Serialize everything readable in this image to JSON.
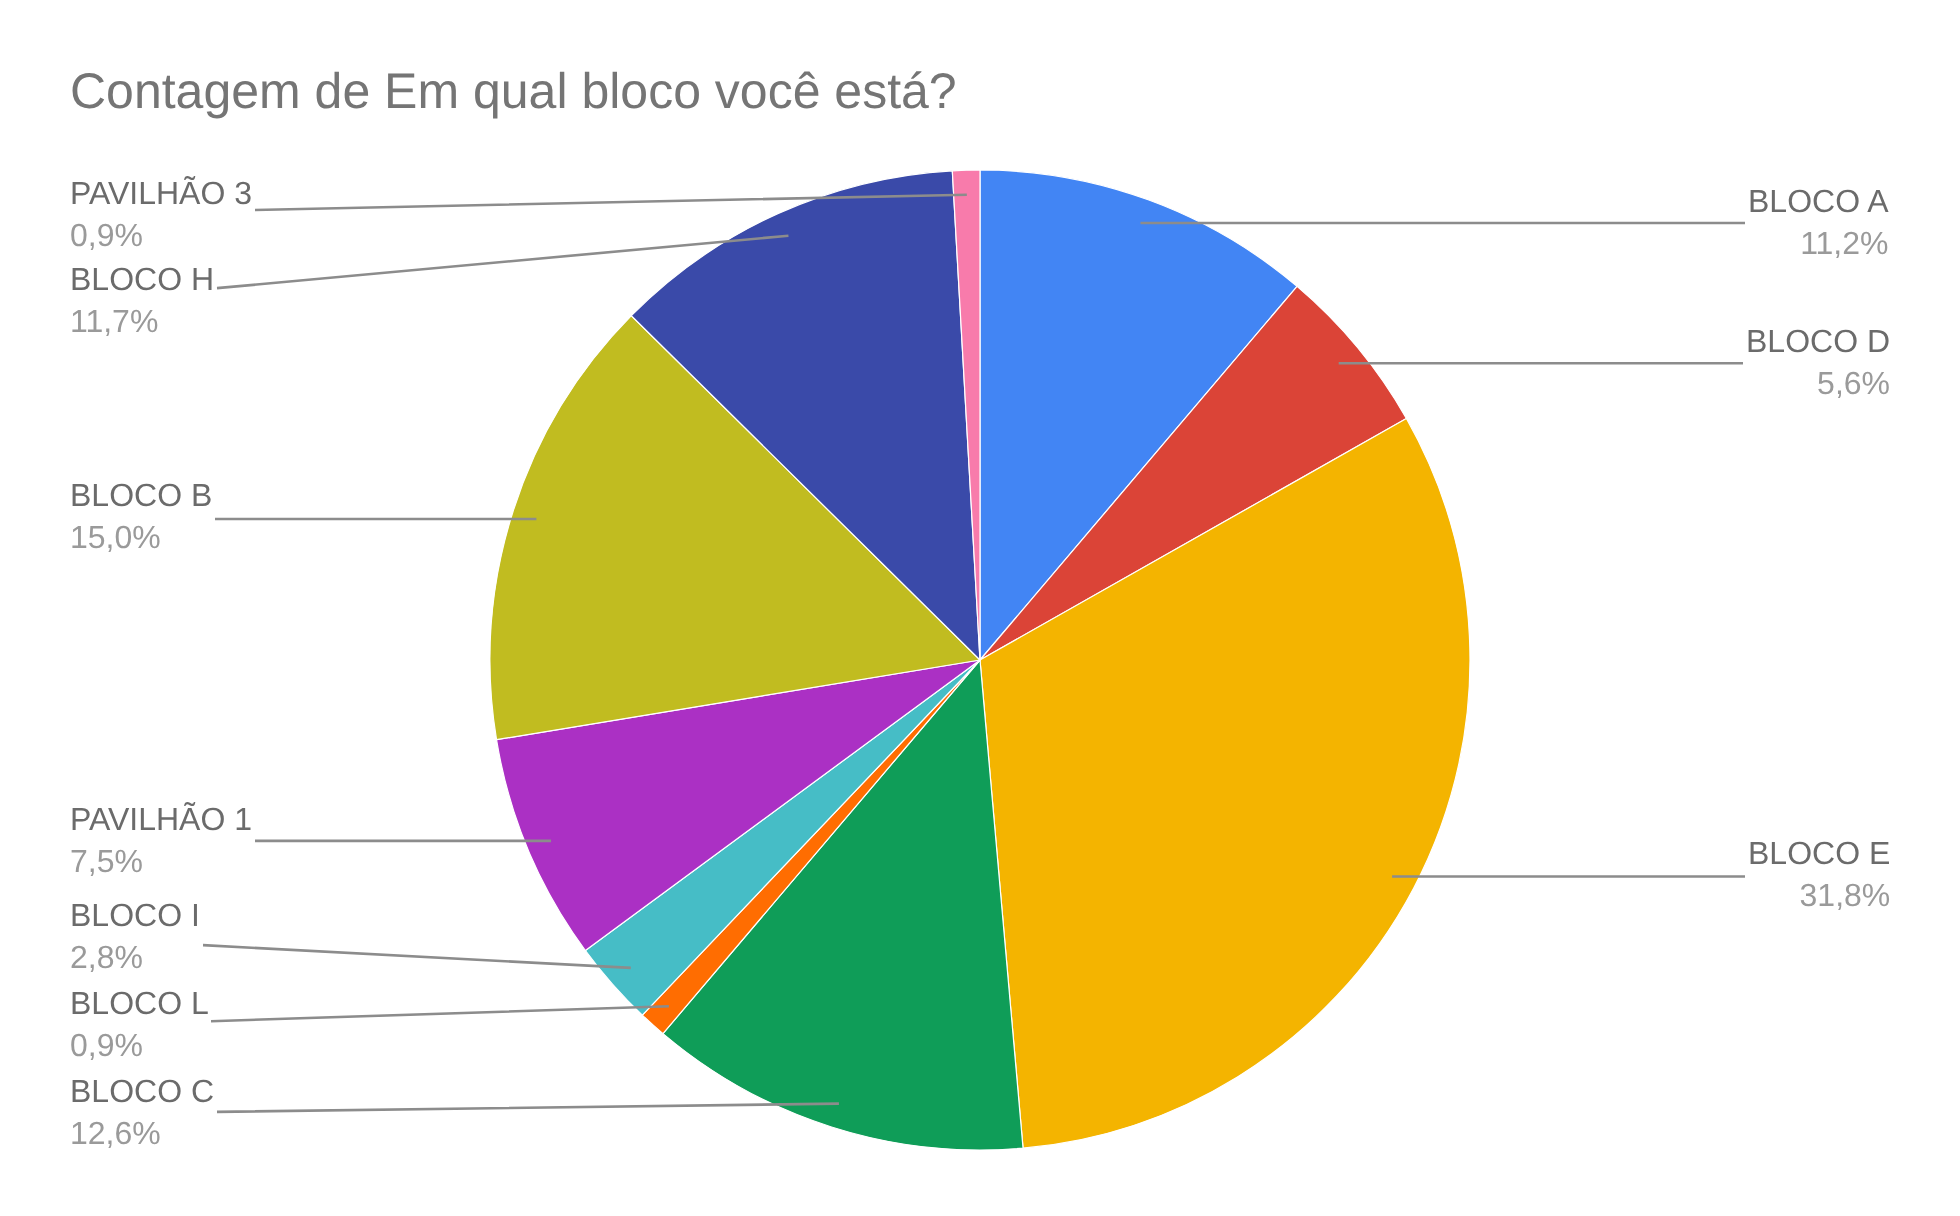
{
  "chart_data": {
    "type": "pie",
    "title": "Contagem de Em qual bloco você está?",
    "categories": [
      "BLOCO A",
      "BLOCO D",
      "BLOCO E",
      "BLOCO C",
      "BLOCO L",
      "BLOCO I",
      "PAVILHÃO 1",
      "BLOCO B",
      "BLOCO H",
      "PAVILHÃO 3"
    ],
    "values": [
      11.2,
      5.6,
      31.8,
      12.6,
      0.9,
      2.8,
      7.5,
      15.0,
      11.7,
      0.9
    ],
    "colors": [
      "#4285f4",
      "#db4437",
      "#f4b400",
      "#0f9d58",
      "#ff6d01",
      "#46bdc6",
      "#ab30c4",
      "#c1bc20",
      "#3a4aa9",
      "#f87bab"
    ],
    "value_labels": [
      "11,2%",
      "5,6%",
      "31,8%",
      "12,6%",
      "0,9%",
      "2,8%",
      "7,5%",
      "15,0%",
      "11,7%",
      "0,9%"
    ]
  }
}
